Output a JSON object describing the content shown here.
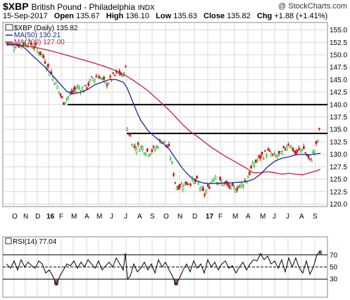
{
  "header": {
    "symbol": "$XBP",
    "name": "British Pound - Philadelphia",
    "exchange": "INDX",
    "watermark": "@ StockCharts.com",
    "date": "15-Sep-2017",
    "open_label": "Open",
    "open": "135.67",
    "high_label": "High",
    "high": "136.10",
    "low_label": "Low",
    "low": "135.63",
    "close_label": "Close",
    "close": "135.82",
    "chg_label": "Chg",
    "chg": "+1.88 (+1.41%)"
  },
  "legend": {
    "price": "$XBP (Daily) 135.82",
    "ma50": "MA(50) 130.21",
    "ma200": "MA(200) 127.00",
    "rsi": "RSI(14) 77.04"
  },
  "colors": {
    "ma50": "#1a2a9a",
    "ma200": "#c0203a",
    "up_bar": "#22aa22",
    "down_bar": "#cc1111",
    "rsi_line": "#000000",
    "rsi_fill": "#8a4a5a",
    "grid": "#d8d8d8"
  },
  "chart_data": [
    {
      "type": "line",
      "title": "$XBP British Pound - Philadelphia INDX",
      "x_ticks": [
        "O",
        "N",
        "D",
        "16",
        "F",
        "M",
        "A",
        "M",
        "J",
        "J",
        "A",
        "S",
        "O",
        "N",
        "D",
        "17",
        "F",
        "M",
        "A",
        "M",
        "J",
        "J",
        "A",
        "S"
      ],
      "y_ticks": [
        120.0,
        122.5,
        125.0,
        127.5,
        130.0,
        132.5,
        135.0,
        137.5,
        140.0,
        142.5,
        145.0,
        147.5,
        150.0,
        152.5,
        155.0
      ],
      "ylim": [
        119.5,
        156.5
      ],
      "horizontal_lines": [
        140.0,
        134.2
      ],
      "series": [
        {
          "name": "MA(50) 130.21",
          "x": [
            9,
            15,
            20,
            25,
            31,
            37,
            45,
            55,
            65,
            75,
            85,
            95,
            105,
            115,
            125,
            135,
            145,
            155,
            165,
            175,
            180,
            185,
            190,
            195,
            200,
            210,
            220,
            230,
            240,
            250,
            260,
            270,
            280,
            290,
            300,
            310,
            320,
            330,
            340,
            350,
            360,
            370,
            380,
            390,
            400,
            410,
            420,
            430,
            440,
            450,
            455
          ],
          "y": [
            152.0,
            152.1,
            152.2,
            152.1,
            151.8,
            151.1,
            150.0,
            148.7,
            147.4,
            145.8,
            144.2,
            142.6,
            142.2,
            142.5,
            143.1,
            144.0,
            144.5,
            145.0,
            145.0,
            144.5,
            143.5,
            141.8,
            140.0,
            138.3,
            136.8,
            134.8,
            133.5,
            132.4,
            131.1,
            129.0,
            127.0,
            125.5,
            124.6,
            124.2,
            124.1,
            124.2,
            124.2,
            124.3,
            124.4,
            124.5,
            125.0,
            126.0,
            127.5,
            128.6,
            129.2,
            129.5,
            129.9,
            130.0,
            129.9,
            130.1,
            130.2
          ]
        },
        {
          "name": "MA(200) 127.00",
          "x": [
            9,
            30,
            50,
            70,
            90,
            110,
            130,
            150,
            170,
            180,
            190,
            200,
            210,
            220,
            230,
            240,
            250,
            260,
            270,
            280,
            290,
            300,
            310,
            320,
            330,
            340,
            350,
            360,
            370,
            380,
            390,
            400,
            410,
            420,
            430,
            440,
            450,
            455
          ],
          "y": [
            152.2,
            151.9,
            151.5,
            150.9,
            150.1,
            149.3,
            148.5,
            147.6,
            146.5,
            145.7,
            144.8,
            143.8,
            142.8,
            141.5,
            140.2,
            138.9,
            137.4,
            135.9,
            134.6,
            133.6,
            132.5,
            131.4,
            130.5,
            129.6,
            128.8,
            128.0,
            127.2,
            126.3,
            126.3,
            126.5,
            126.3,
            126.0,
            126.2,
            126.0,
            125.9,
            126.3,
            126.7,
            127.0
          ]
        },
        {
          "name": "$XBP (Daily) 135.82",
          "x": [
            9,
            20,
            30,
            40,
            50,
            60,
            70,
            80,
            90,
            100,
            110,
            120,
            130,
            140,
            150,
            160,
            170,
            175,
            178,
            180,
            185,
            190,
            200,
            210,
            220,
            230,
            240,
            245,
            250,
            260,
            270,
            280,
            290,
            300,
            305,
            310,
            320,
            330,
            340,
            350,
            360,
            370,
            380,
            390,
            400,
            410,
            420,
            430,
            440,
            450,
            455
          ],
          "y": [
            152.5,
            152.0,
            152.0,
            152.5,
            151.5,
            150.0,
            147.0,
            144.0,
            140.5,
            142.0,
            143.5,
            143.0,
            145.0,
            146.0,
            144.0,
            145.5,
            146.5,
            145.0,
            150.0,
            135.5,
            133.5,
            131.5,
            131.5,
            130.5,
            131.0,
            133.0,
            131.0,
            127.5,
            123.5,
            124.0,
            124.5,
            124.5,
            121.8,
            124.5,
            126.0,
            124.5,
            124.0,
            123.0,
            123.5,
            125.0,
            128.0,
            129.5,
            130.5,
            129.5,
            130.0,
            132.5,
            130.0,
            131.5,
            128.5,
            132.0,
            135.82
          ]
        }
      ]
    },
    {
      "type": "line",
      "title": "RSI(14) 77.04",
      "y_ticks": [
        30,
        50,
        70
      ],
      "ylim": [
        0,
        100
      ],
      "reference_lines": [
        30,
        50,
        70
      ],
      "series": [
        {
          "name": "RSI(14) 77.04",
          "x": [
            9,
            15,
            20,
            25,
            30,
            35,
            40,
            45,
            50,
            55,
            60,
            65,
            70,
            75,
            80,
            85,
            90,
            95,
            100,
            105,
            110,
            115,
            120,
            125,
            130,
            135,
            140,
            145,
            150,
            155,
            160,
            165,
            170,
            175,
            178,
            181,
            185,
            190,
            195,
            200,
            205,
            210,
            215,
            220,
            225,
            230,
            235,
            240,
            245,
            250,
            255,
            260,
            265,
            270,
            275,
            280,
            285,
            290,
            295,
            300,
            305,
            310,
            315,
            320,
            325,
            330,
            335,
            340,
            345,
            350,
            355,
            360,
            365,
            370,
            375,
            380,
            385,
            390,
            395,
            400,
            405,
            410,
            415,
            420,
            425,
            430,
            435,
            440,
            445,
            450,
            455
          ],
          "y": [
            55,
            48,
            60,
            45,
            62,
            50,
            58,
            52,
            48,
            60,
            55,
            40,
            45,
            35,
            20,
            35,
            45,
            55,
            52,
            60,
            48,
            58,
            50,
            62,
            55,
            48,
            60,
            45,
            52,
            58,
            50,
            65,
            55,
            45,
            72,
            30,
            35,
            55,
            42,
            48,
            58,
            45,
            55,
            40,
            62,
            50,
            58,
            45,
            35,
            20,
            32,
            45,
            55,
            42,
            60,
            48,
            55,
            40,
            62,
            50,
            58,
            45,
            55,
            60,
            48,
            52,
            40,
            50,
            58,
            45,
            55,
            62,
            60,
            72,
            62,
            68,
            55,
            60,
            48,
            62,
            42,
            65,
            50,
            65,
            48,
            40,
            60,
            38,
            50,
            70,
            77.04
          ]
        }
      ]
    }
  ]
}
